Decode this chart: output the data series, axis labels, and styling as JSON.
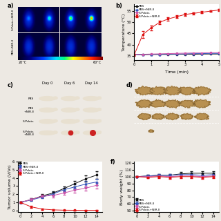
{
  "panel_b": {
    "time": [
      0,
      0.5,
      1.0,
      1.5,
      2.0,
      2.5,
      3.0,
      3.5,
      4.0,
      4.5,
      5.0
    ],
    "PBS": [
      35.5,
      35.5,
      35.6,
      35.6,
      35.6,
      35.7,
      35.7,
      35.7,
      35.8,
      35.8,
      35.8
    ],
    "PBS_NIR": [
      35.5,
      35.6,
      35.7,
      35.7,
      35.8,
      35.8,
      35.9,
      36.0,
      36.0,
      36.1,
      36.1
    ],
    "S_Pdots": [
      35.5,
      35.7,
      35.8,
      35.9,
      36.0,
      36.1,
      36.2,
      36.3,
      36.3,
      36.4,
      36.5
    ],
    "S_Pdots_NIR": [
      35.5,
      44.5,
      47.5,
      50.0,
      51.5,
      52.5,
      53.5,
      54.0,
      54.5,
      55.0,
      55.5
    ],
    "S_Pdots_NIR_err": [
      0.5,
      1.5,
      1.0,
      0.8,
      0.8,
      0.7,
      0.6,
      0.5,
      0.5,
      0.4,
      0.4
    ],
    "ylabel": "Temperature (°C)",
    "xlabel": "Time (min)",
    "ylim": [
      33,
      58
    ],
    "xlim": [
      0,
      5
    ],
    "yticks": [
      35,
      40,
      45,
      50,
      55
    ],
    "xticks": [
      0,
      1,
      2,
      3,
      4,
      5
    ],
    "colors": {
      "PBS": "#111111",
      "PBS_NIR": "#3355bb",
      "S_Pdots": "#cc55aa",
      "S_Pdots_NIR": "#dd1111"
    },
    "legend": [
      "PBS",
      "PBS+NIR-Ⅱ",
      "S-Pdots",
      "S-Pdots+NIR-Ⅱ"
    ]
  },
  "panel_e": {
    "days": [
      0,
      2,
      4,
      6,
      8,
      10,
      12,
      14
    ],
    "PBS": [
      1.0,
      1.35,
      1.8,
      2.15,
      2.7,
      3.3,
      3.9,
      4.35
    ],
    "PBS_NIR": [
      1.0,
      1.3,
      1.65,
      2.05,
      2.55,
      2.9,
      3.25,
      3.5
    ],
    "S_Pdots": [
      1.0,
      1.35,
      1.75,
      1.85,
      2.15,
      2.5,
      2.75,
      3.1
    ],
    "S_Pdots_NIR": [
      1.0,
      0.45,
      0.18,
      0.08,
      0.04,
      0.03,
      0.02,
      0.02
    ],
    "PBS_err": [
      0.05,
      0.12,
      0.18,
      0.22,
      0.28,
      0.32,
      0.38,
      0.48
    ],
    "PBS_NIR_err": [
      0.05,
      0.12,
      0.18,
      0.22,
      0.27,
      0.32,
      0.37,
      0.42
    ],
    "S_Pdots_err": [
      0.05,
      0.12,
      0.18,
      0.22,
      0.22,
      0.27,
      0.32,
      0.38
    ],
    "S_Pdots_NIR_err": [
      0.05,
      0.12,
      0.09,
      0.06,
      0.03,
      0.02,
      0.01,
      0.01
    ],
    "ylabel": "Tumor volume (V/V₀)",
    "xlabel": "",
    "ylim": [
      -0.2,
      6
    ],
    "xlim": [
      -0.5,
      15
    ],
    "yticks": [
      0,
      1,
      2,
      3,
      4,
      5,
      6
    ],
    "xticks": [
      0,
      2,
      4,
      6,
      8,
      10,
      12,
      14
    ],
    "colors": {
      "PBS": "#111111",
      "PBS_NIR": "#3355bb",
      "S_Pdots": "#cc55aa",
      "S_Pdots_NIR": "#dd1111"
    },
    "legend": [
      "PBS",
      "PBS+NIR-Ⅱ",
      "S-Pdots",
      "S-Pdots+NIR-Ⅱ"
    ]
  },
  "panel_f": {
    "days": [
      0,
      2,
      4,
      6,
      8,
      10,
      12,
      14
    ],
    "PBS": [
      100,
      101,
      102,
      102,
      104,
      105,
      105,
      105
    ],
    "PBS_NIR": [
      100,
      101,
      102,
      102,
      103,
      103,
      102,
      103
    ],
    "S_Pdots": [
      100,
      100,
      101,
      100,
      101,
      101,
      100,
      101
    ],
    "S_Pdots_NIR": [
      100,
      99,
      100,
      99,
      100,
      100,
      99,
      100
    ],
    "PBS_err": [
      0.5,
      1.5,
      2,
      2,
      2.5,
      2.5,
      2.5,
      2.5
    ],
    "PBS_NIR_err": [
      0.5,
      1.5,
      2,
      2,
      2,
      2.5,
      2.5,
      2.5
    ],
    "S_Pdots_err": [
      0.5,
      1.5,
      2,
      2,
      2.5,
      2,
      2.5,
      2.5
    ],
    "S_Pdots_NIR_err": [
      0.5,
      1.5,
      2,
      2,
      2,
      2,
      2.5,
      2.5
    ],
    "ylabel": "Body weight (%)",
    "xlabel": "",
    "ylim": [
      48,
      122
    ],
    "xlim": [
      -0.5,
      15
    ],
    "yticks": [
      50,
      60,
      70,
      80,
      90,
      100,
      110,
      120
    ],
    "xticks": [
      0,
      2,
      4,
      6,
      8,
      10,
      12,
      14
    ],
    "colors": {
      "PBS": "#111111",
      "PBS_NIR": "#3355bb",
      "S_Pdots": "#cc55aa",
      "S_Pdots_NIR": "#dd1111"
    },
    "legend": [
      "PBS",
      "PBS+NIR-Ⅱ",
      "S-Pdots",
      "S-Pdots+NIR-Ⅱ"
    ]
  },
  "colorbar": {
    "label_left": "20°C",
    "label_right": "60°C"
  },
  "thermal_labels": [
    "S-Pdots+NIR-Ⅱ",
    "PBS+NIR-Ⅱ"
  ],
  "mouse_labels_c": [
    "PBS",
    "PBS\n+NIR-Ⅱ",
    "S-Pdots",
    "S-Pdots\n+NIR-Ⅱ"
  ],
  "day_labels": [
    "Day 0",
    "Day 6",
    "Day 14"
  ],
  "bg_color": "#ede9e3",
  "panel_d_bg": "#c0b090",
  "tumor_color": "#b89050"
}
